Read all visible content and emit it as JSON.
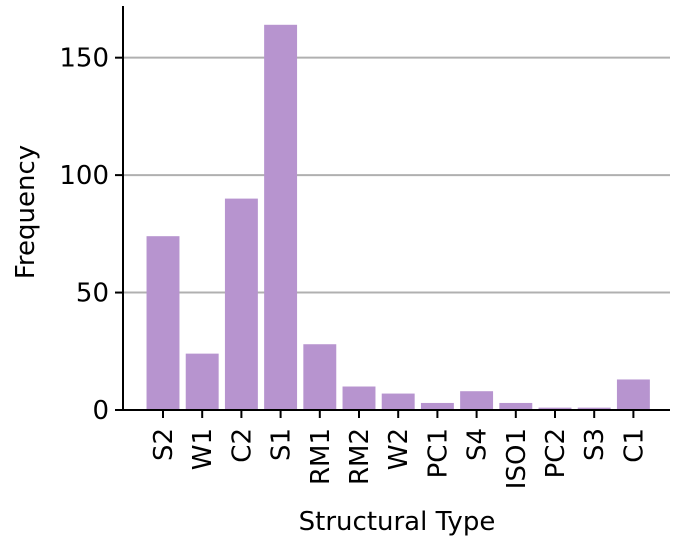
{
  "chart_data": {
    "type": "bar",
    "title": "",
    "xlabel": "Structural Type",
    "ylabel": "Frequency",
    "categories": [
      "S2",
      "W1",
      "C2",
      "S1",
      "RM1",
      "RM2",
      "W2",
      "PC1",
      "S4",
      "ISO1",
      "PC2",
      "S3",
      "C1"
    ],
    "values": [
      74,
      24,
      90,
      164,
      28,
      10,
      7,
      3,
      8,
      3,
      1,
      1,
      13
    ],
    "ylim": [
      0,
      172
    ],
    "yticks": [
      0,
      50,
      100,
      150
    ],
    "grid": "horizontal",
    "legend": "none",
    "bar_color": "#b794cf",
    "grid_color": "#b0b0b0"
  }
}
